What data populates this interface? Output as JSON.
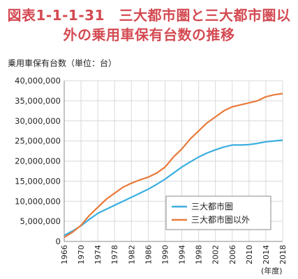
{
  "title_line1": "図表1-1-1-31　三大都市圏と三大都市圏以",
  "title_line2": "外の乗用車保有台数の推移",
  "chart_data": {
    "type": "line",
    "ylabel": "乗用車保有台数（単位：台）",
    "xlabel": "(年度)",
    "ylim": [
      0,
      40000000
    ],
    "yticks": [
      0,
      5000000,
      10000000,
      15000000,
      20000000,
      25000000,
      30000000,
      35000000,
      40000000
    ],
    "ytick_labels": [
      "0",
      "5,000,000",
      "10,000,000",
      "15,000,000",
      "20,000,000",
      "25,000,000",
      "30,000,000",
      "35,000,000",
      "40,000,000"
    ],
    "xticks": [
      1966,
      1970,
      1974,
      1978,
      1982,
      1986,
      1990,
      1994,
      1998,
      2002,
      2006,
      2010,
      2014,
      2018
    ],
    "xlim": [
      1966,
      2018
    ],
    "grid": true,
    "legend": "bottom-right",
    "series": [
      {
        "name": "三大都市圏",
        "color": "#3aaee0",
        "x": [
          1966,
          1968,
          1970,
          1972,
          1974,
          1976,
          1978,
          1980,
          1982,
          1984,
          1986,
          1988,
          1990,
          1992,
          1994,
          1996,
          1998,
          2000,
          2002,
          2004,
          2006,
          2008,
          2010,
          2012,
          2014,
          2016,
          2018
        ],
        "values": [
          1500000,
          2600000,
          3900000,
          5500000,
          7000000,
          8000000,
          9000000,
          10000000,
          11000000,
          12000000,
          13000000,
          14200000,
          15500000,
          17000000,
          18500000,
          19800000,
          21000000,
          22000000,
          22800000,
          23500000,
          24000000,
          24000000,
          24100000,
          24400000,
          24800000,
          25000000,
          25200000
        ]
      },
      {
        "name": "三大都市圏以外",
        "color": "#e87a3a",
        "x": [
          1966,
          1968,
          1970,
          1972,
          1974,
          1976,
          1978,
          1980,
          1982,
          1984,
          1986,
          1988,
          1990,
          1992,
          1994,
          1996,
          1998,
          2000,
          2002,
          2004,
          2006,
          2008,
          2010,
          2012,
          2014,
          2016,
          2018
        ],
        "values": [
          1000000,
          2300000,
          4000000,
          6500000,
          8500000,
          10500000,
          12000000,
          13500000,
          14500000,
          15300000,
          16000000,
          17000000,
          18500000,
          21000000,
          23000000,
          25500000,
          27500000,
          29500000,
          31000000,
          32500000,
          33500000,
          34000000,
          34500000,
          35000000,
          36000000,
          36500000,
          36800000
        ]
      }
    ]
  }
}
